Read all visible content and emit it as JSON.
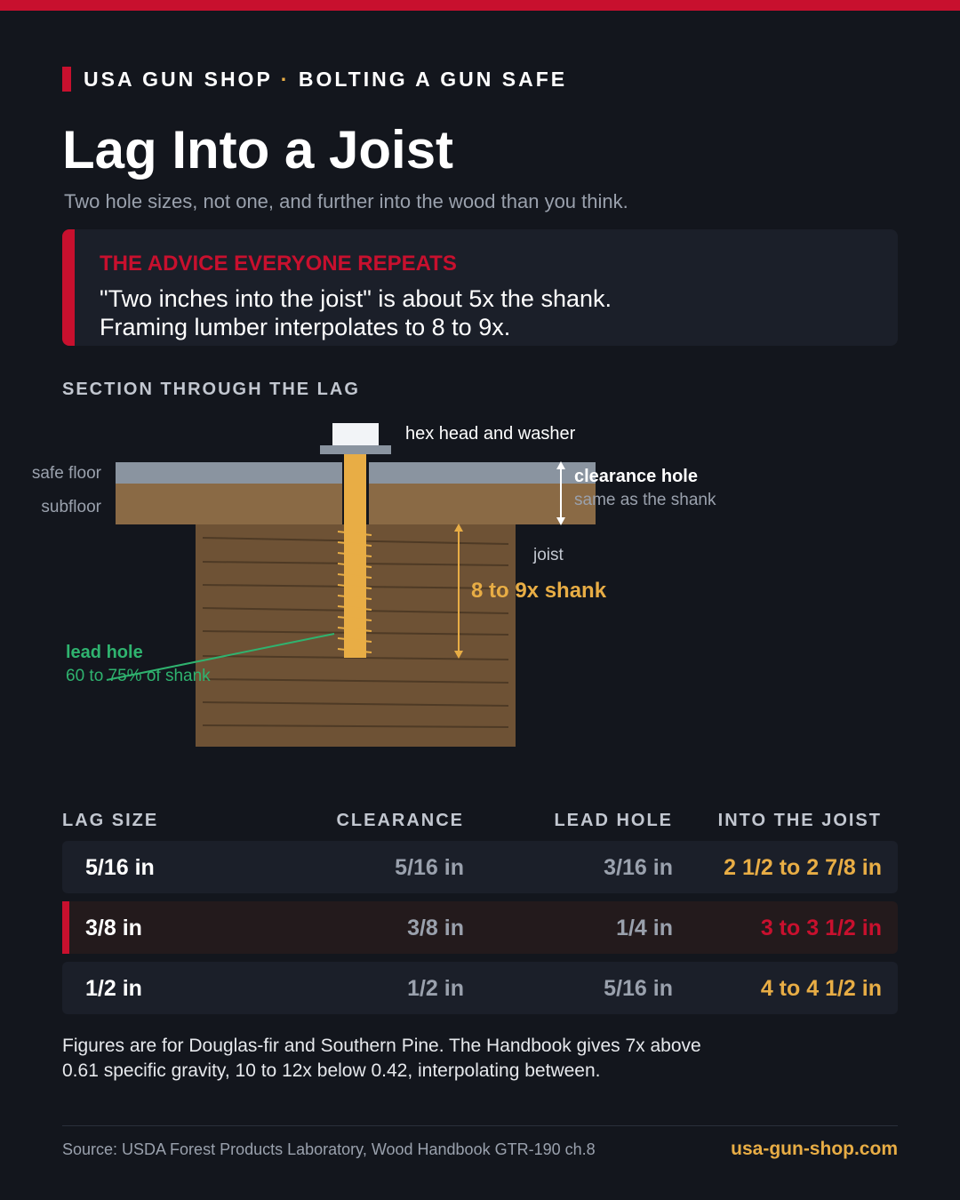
{
  "header": {
    "brand": "USA GUN SHOP",
    "separator": "·",
    "topic": "BOLTING A GUN SAFE",
    "title": "Lag Into a Joist",
    "subtitle": "Two hole sizes, not one, and further into the wood than you think."
  },
  "callout": {
    "label": "THE ADVICE EVERYONE REPEATS",
    "text": "\"Two inches into the joist\" is about 5x the shank. Framing lumber interpolates to 8 to 9x."
  },
  "diagram": {
    "heading": "SECTION THROUGH THE LAG",
    "head_label": "hex head and washer",
    "safe_floor": "safe floor",
    "subfloor": "subfloor",
    "clearance_title": "clearance hole",
    "clearance_note": "same as the shank",
    "joist": "joist",
    "depth": "8 to 9x shank",
    "lead_title": "lead hole",
    "lead_note": "60 to 75% of shank"
  },
  "table": {
    "headers": [
      "LAG SIZE",
      "CLEARANCE",
      "LEAD HOLE",
      "INTO THE JOIST"
    ],
    "rows": [
      [
        "5/16 in",
        "5/16 in",
        "3/16 in",
        "2 1/2 to 2 7/8 in"
      ],
      [
        "3/8 in",
        "3/8 in",
        "1/4 in",
        "3 to 3 1/2 in"
      ],
      [
        "1/2 in",
        "1/2 in",
        "5/16 in",
        "4 to 4 1/2 in"
      ]
    ]
  },
  "note": "Figures are for Douglas-fir and Southern Pine. The Handbook gives 7x above 0.61 specific gravity, 10 to 12x below 0.42, interpolating between.",
  "footer": {
    "source": "Source: USDA Forest Products Laboratory, Wood Handbook GTR-190 ch.8",
    "site": "usa-gun-shop.com"
  }
}
